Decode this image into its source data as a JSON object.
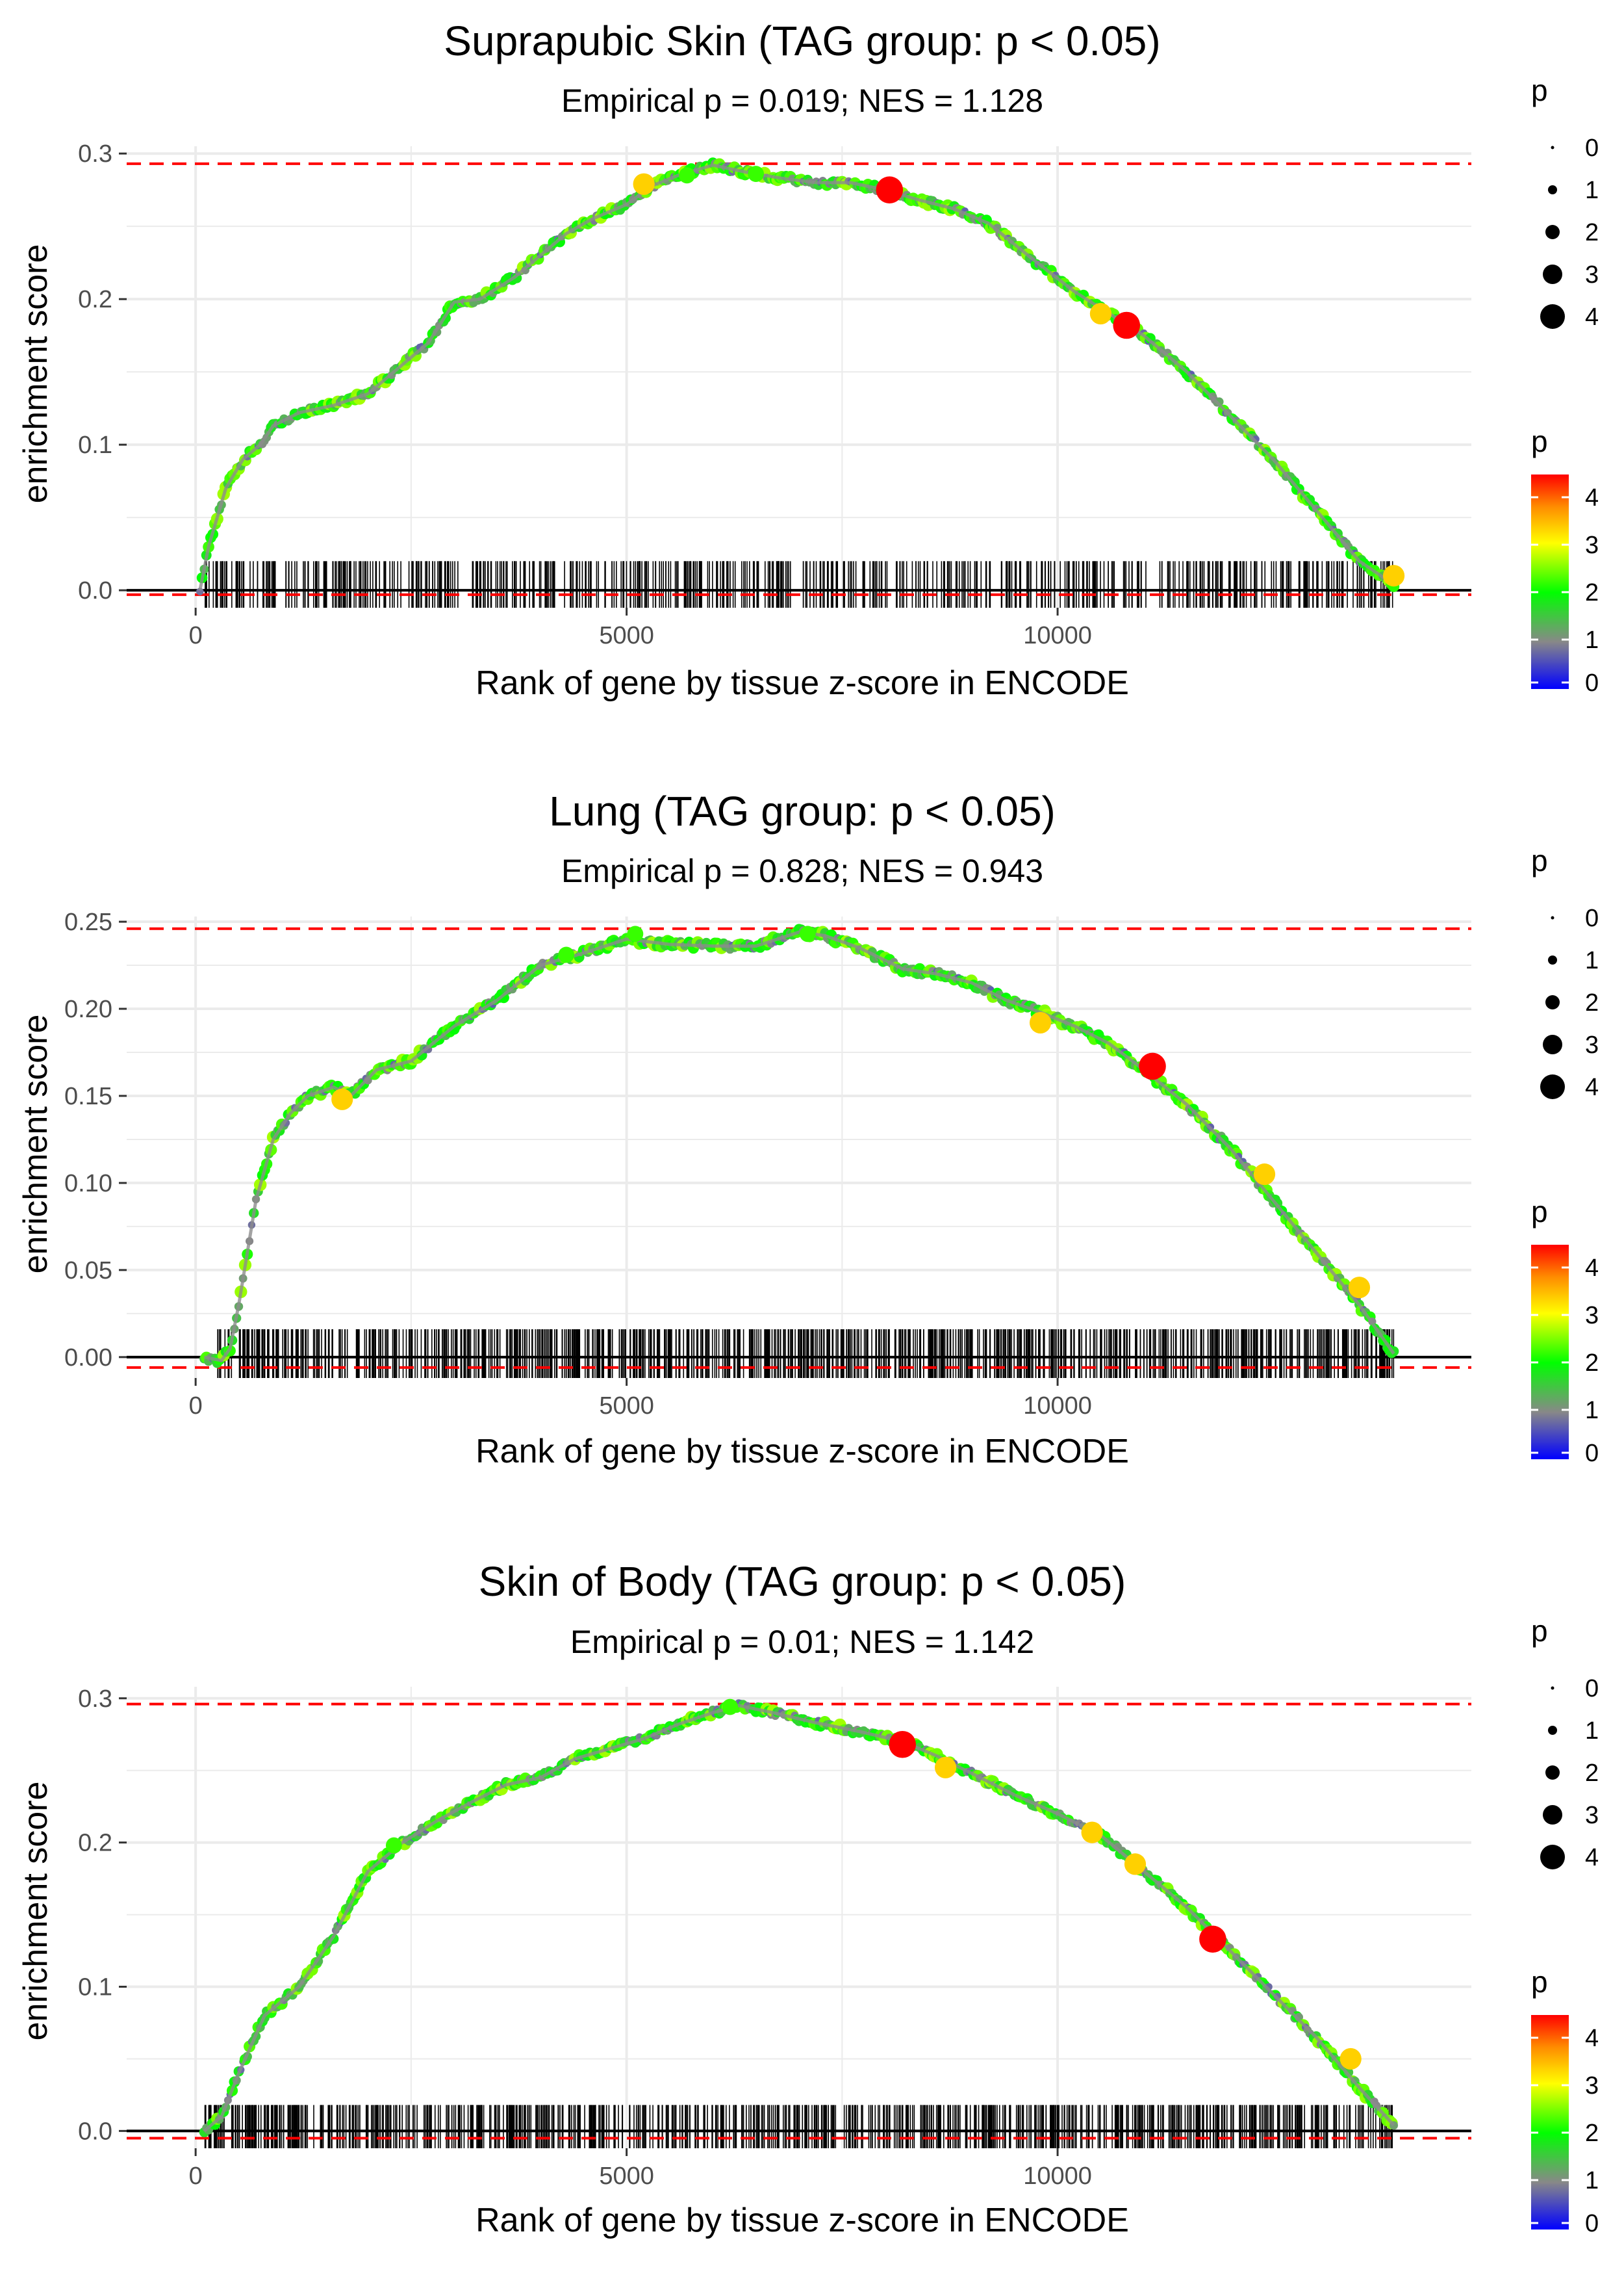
{
  "chart_data": [
    {
      "type": "scatter",
      "title": "Suprapubic Skin (TAG group: p < 0.05)",
      "subtitle": "Empirical p = 0.019; NES = 1.128",
      "xlabel": "Rank of gene by tissue z-score in ENCODE",
      "ylabel": "enrichment score",
      "xlim": [
        -800,
        14800
      ],
      "ylim": [
        -0.012,
        0.305
      ],
      "xticks": [
        0,
        5000,
        10000
      ],
      "xtick_labels": [
        "0",
        "5000",
        "10000"
      ],
      "yticks": [
        0,
        0.1,
        0.2,
        0.3
      ],
      "ytick_labels": [
        "0.0",
        "0.1",
        "0.2",
        "0.3"
      ],
      "max_es": 0.293,
      "min_es": -0.003,
      "curve": [
        [
          50,
          0.0
        ],
        [
          150,
          0.03
        ],
        [
          350,
          0.07
        ],
        [
          550,
          0.09
        ],
        [
          750,
          0.1
        ],
        [
          900,
          0.113
        ],
        [
          1200,
          0.122
        ],
        [
          1600,
          0.127
        ],
        [
          2000,
          0.135
        ],
        [
          2400,
          0.155
        ],
        [
          2700,
          0.17
        ],
        [
          3000,
          0.198
        ],
        [
          3300,
          0.2
        ],
        [
          3700,
          0.215
        ],
        [
          4000,
          0.23
        ],
        [
          4300,
          0.245
        ],
        [
          4600,
          0.255
        ],
        [
          5000,
          0.265
        ],
        [
          5300,
          0.278
        ],
        [
          5600,
          0.285
        ],
        [
          6000,
          0.292
        ],
        [
          6400,
          0.287
        ],
        [
          6800,
          0.283
        ],
        [
          7200,
          0.28
        ],
        [
          7600,
          0.28
        ],
        [
          8000,
          0.275
        ],
        [
          8400,
          0.268
        ],
        [
          8800,
          0.262
        ],
        [
          9200,
          0.252
        ],
        [
          9700,
          0.228
        ],
        [
          10200,
          0.205
        ],
        [
          10600,
          0.19
        ],
        [
          11000,
          0.175
        ],
        [
          11500,
          0.15
        ],
        [
          12000,
          0.12
        ],
        [
          12500,
          0.09
        ],
        [
          13000,
          0.055
        ],
        [
          13500,
          0.02
        ],
        [
          13900,
          0.004
        ]
      ],
      "highlight_points": [
        [
          5200,
          0.279,
          3
        ],
        [
          5700,
          0.285,
          2
        ],
        [
          6500,
          0.286,
          2
        ],
        [
          8050,
          0.275,
          4
        ],
        [
          10500,
          0.19,
          3
        ],
        [
          10800,
          0.182,
          4
        ],
        [
          13900,
          0.01,
          3
        ]
      ],
      "hits": {
        "count": 620,
        "start": 100,
        "end": 13900,
        "top": 0.02,
        "bottom": -0.012,
        "seed": 7
      }
    },
    {
      "type": "scatter",
      "title": "Lung (TAG group: p < 0.05)",
      "subtitle": "Empirical p = 0.828; NES = 0.943",
      "xlabel": "Rank of gene by tissue z-score in ENCODE",
      "ylabel": "enrichment score",
      "xlim": [
        -800,
        14800
      ],
      "ylim": [
        -0.012,
        0.253
      ],
      "xticks": [
        0,
        5000,
        10000
      ],
      "xtick_labels": [
        "0",
        "5000",
        "10000"
      ],
      "yticks": [
        0,
        0.05,
        0.1,
        0.15,
        0.2,
        0.25
      ],
      "ytick_labels": [
        "0.00",
        "0.05",
        "0.10",
        "0.15",
        "0.20",
        "0.25"
      ],
      "max_es": 0.246,
      "min_es": -0.006,
      "curve": [
        [
          100,
          0.0
        ],
        [
          300,
          -0.002
        ],
        [
          400,
          0.005
        ],
        [
          500,
          0.03
        ],
        [
          700,
          0.09
        ],
        [
          900,
          0.125
        ],
        [
          1100,
          0.14
        ],
        [
          1300,
          0.15
        ],
        [
          1600,
          0.155
        ],
        [
          1800,
          0.15
        ],
        [
          2100,
          0.165
        ],
        [
          2500,
          0.17
        ],
        [
          3000,
          0.19
        ],
        [
          3500,
          0.205
        ],
        [
          4000,
          0.225
        ],
        [
          4500,
          0.232
        ],
        [
          5000,
          0.24
        ],
        [
          5500,
          0.237
        ],
        [
          6000,
          0.236
        ],
        [
          6500,
          0.236
        ],
        [
          7000,
          0.244
        ],
        [
          7300,
          0.242
        ],
        [
          7700,
          0.235
        ],
        [
          8200,
          0.223
        ],
        [
          8600,
          0.22
        ],
        [
          9000,
          0.215
        ],
        [
          9400,
          0.205
        ],
        [
          9800,
          0.198
        ],
        [
          10200,
          0.19
        ],
        [
          10600,
          0.18
        ],
        [
          11000,
          0.165
        ],
        [
          11500,
          0.145
        ],
        [
          12000,
          0.12
        ],
        [
          12500,
          0.09
        ],
        [
          13000,
          0.06
        ],
        [
          13500,
          0.03
        ],
        [
          13900,
          0.002
        ]
      ],
      "highlight_points": [
        [
          1700,
          0.148,
          3
        ],
        [
          4300,
          0.231,
          2
        ],
        [
          5100,
          0.243,
          2
        ],
        [
          7100,
          0.243,
          2
        ],
        [
          9800,
          0.192,
          3
        ],
        [
          11100,
          0.167,
          4
        ],
        [
          12400,
          0.105,
          3
        ],
        [
          13500,
          0.04,
          3
        ]
      ],
      "hits": {
        "count": 900,
        "start": 250,
        "end": 13900,
        "top": 0.016,
        "bottom": -0.012,
        "seed": 11
      }
    },
    {
      "type": "scatter",
      "title": "Skin of Body (TAG group: p < 0.05)",
      "subtitle": "Empirical p = 0.01; NES = 1.142",
      "xlabel": "Rank of gene by tissue z-score in ENCODE",
      "ylabel": "enrichment score",
      "xlim": [
        -800,
        14800
      ],
      "ylim": [
        -0.012,
        0.308
      ],
      "xticks": [
        0,
        5000,
        10000
      ],
      "xtick_labels": [
        "0",
        "5000",
        "10000"
      ],
      "yticks": [
        0,
        0.1,
        0.2,
        0.3
      ],
      "ytick_labels": [
        "0.0",
        "0.1",
        "0.2",
        "0.3"
      ],
      "max_es": 0.296,
      "min_es": -0.005,
      "curve": [
        [
          100,
          0.0
        ],
        [
          300,
          0.01
        ],
        [
          500,
          0.04
        ],
        [
          800,
          0.08
        ],
        [
          1200,
          0.1
        ],
        [
          1600,
          0.135
        ],
        [
          2000,
          0.18
        ],
        [
          2400,
          0.2
        ],
        [
          2800,
          0.215
        ],
        [
          3200,
          0.228
        ],
        [
          3600,
          0.24
        ],
        [
          4000,
          0.245
        ],
        [
          4400,
          0.258
        ],
        [
          4800,
          0.265
        ],
        [
          5200,
          0.272
        ],
        [
          5600,
          0.282
        ],
        [
          6000,
          0.29
        ],
        [
          6300,
          0.295
        ],
        [
          6700,
          0.29
        ],
        [
          7200,
          0.283
        ],
        [
          7700,
          0.277
        ],
        [
          8200,
          0.27
        ],
        [
          8600,
          0.26
        ],
        [
          9000,
          0.248
        ],
        [
          9500,
          0.233
        ],
        [
          10000,
          0.22
        ],
        [
          10500,
          0.205
        ],
        [
          11000,
          0.18
        ],
        [
          11500,
          0.155
        ],
        [
          12000,
          0.125
        ],
        [
          12500,
          0.095
        ],
        [
          13000,
          0.065
        ],
        [
          13500,
          0.03
        ],
        [
          13900,
          0.004
        ]
      ],
      "highlight_points": [
        [
          2300,
          0.198,
          2
        ],
        [
          6200,
          0.294,
          2
        ],
        [
          8200,
          0.268,
          4
        ],
        [
          8700,
          0.252,
          3
        ],
        [
          10400,
          0.207,
          3
        ],
        [
          10900,
          0.185,
          3
        ],
        [
          11800,
          0.133,
          4
        ],
        [
          13400,
          0.05,
          3
        ]
      ],
      "hits": {
        "count": 850,
        "start": 100,
        "end": 13900,
        "top": 0.018,
        "bottom": -0.012,
        "seed": 23
      }
    }
  ],
  "legends": [
    {
      "size_title": "p",
      "size_labels": [
        "0",
        "1",
        "2",
        "3",
        "4"
      ],
      "color_title": "p",
      "color_labels": [
        "4",
        "3",
        "2",
        "1",
        "0"
      ]
    },
    {
      "size_title": "p",
      "size_labels": [
        "0",
        "1",
        "2",
        "3",
        "4"
      ],
      "color_title": "p",
      "color_labels": [
        "4",
        "3",
        "2",
        "1",
        "0"
      ]
    },
    {
      "size_title": "p",
      "size_labels": [
        "0",
        "1",
        "2",
        "3",
        "4"
      ],
      "color_title": "p",
      "color_labels": [
        "4",
        "3",
        "2",
        "1",
        "0"
      ]
    }
  ],
  "colors": {
    "gradient": [
      "#0000ff",
      "#888888",
      "#00ff00",
      "#ffff00",
      "#ff8c00",
      "#ff0000"
    ],
    "reference_line": "#ff0000",
    "axis_line": "#000000",
    "grid": "#ebebeb",
    "hit_mark": "#000000"
  }
}
